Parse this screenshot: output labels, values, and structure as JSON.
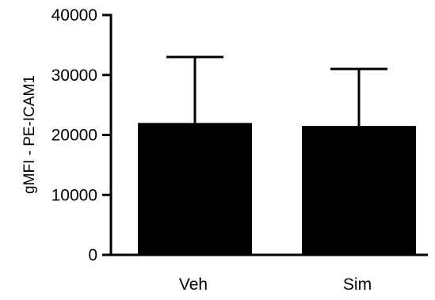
{
  "chart_data": {
    "type": "bar",
    "categories": [
      "Veh",
      "Sim"
    ],
    "values": [
      22000,
      21500
    ],
    "error_upper": [
      33000,
      31000
    ],
    "ylabel": "gMFI - PE-ICAM1",
    "xlabel": "",
    "ylim": [
      0,
      40000
    ],
    "yticks": [
      0,
      10000,
      20000,
      30000,
      40000
    ],
    "ytick_labels": [
      "0",
      "10000",
      "20000",
      "30000",
      "40000"
    ],
    "grid": false,
    "bar_color": "#000000"
  }
}
